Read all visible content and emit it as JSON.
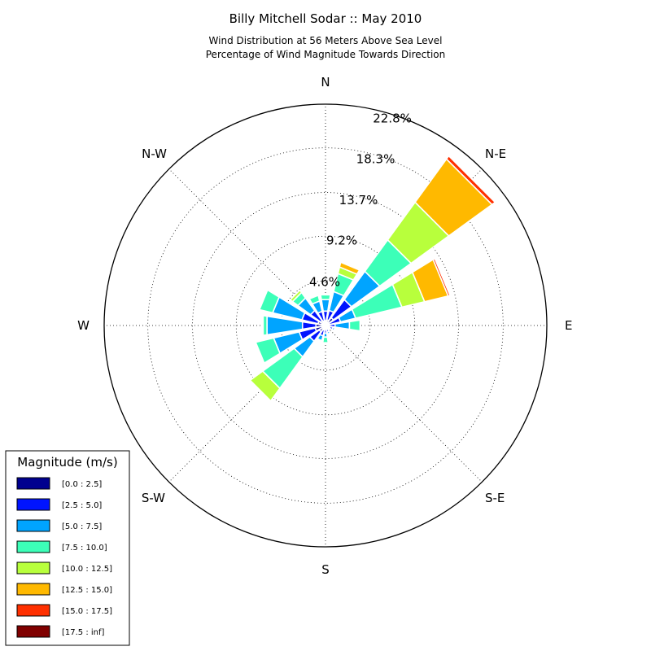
{
  "chart_data": {
    "type": "windrose",
    "title": "Billy Mitchell Sodar :: May 2010",
    "subtitle_lines": [
      "Wind Distribution at 56 Meters Above Sea Level",
      "Percentage of Wind Magnitude Towards Direction"
    ],
    "directions": [
      "N",
      "N-E",
      "E",
      "S-E",
      "S",
      "S-W",
      "W",
      "N-W"
    ],
    "ring_values": [
      4.6,
      9.2,
      13.7,
      18.3,
      22.8
    ],
    "ring_labels": [
      "4.6%",
      "9.2%",
      "13.7%",
      "18.3%",
      "22.8%"
    ],
    "rmax": 22.8,
    "grid": true,
    "legend": {
      "title": "Magnitude (m/s)",
      "position": "bottom-left",
      "bins": [
        "[0.0 : 2.5]",
        "[2.5 : 5.0]",
        "[5.0 : 7.5]",
        "[7.5 : 10.0]",
        "[10.0 : 12.5]",
        "[12.5 : 15.0]",
        "[15.0 : 17.5]",
        "[17.5 : inf]"
      ],
      "colors": [
        "#00008f",
        "#0014ff",
        "#00a4ff",
        "#3cffb8",
        "#b8ff3c",
        "#ffb900",
        "#ff3000",
        "#800000"
      ]
    },
    "bars": [
      {
        "angle": 0,
        "stacks": [
          0.5,
          1.0,
          1.2,
          0.5
        ]
      },
      {
        "angle": 22.5,
        "stacks": [
          0.6,
          1.0,
          2.0,
          1.9,
          0.7,
          0.5
        ]
      },
      {
        "angle": 45,
        "stacks": [
          1.0,
          2.3,
          3.6,
          4.0,
          4.8,
          5.5,
          0.4
        ]
      },
      {
        "angle": 67.5,
        "stacks": [
          0.4,
          1.2,
          1.6,
          4.9,
          2.4,
          2.5,
          0.2
        ]
      },
      {
        "angle": 90,
        "stacks": [
          0.4,
          0.6,
          1.5,
          1.1
        ]
      },
      {
        "angle": 112.5,
        "stacks": [
          0.5,
          0.3,
          0.2,
          0.1
        ]
      },
      {
        "angle": 135,
        "stacks": [
          0.2,
          0.2,
          0.1
        ]
      },
      {
        "angle": 157.5,
        "stacks": [
          0.3,
          0.4,
          0.2
        ]
      },
      {
        "angle": 180,
        "stacks": [
          0.2,
          0.6,
          0.4,
          0.6
        ]
      },
      {
        "angle": 202.5,
        "stacks": [
          0.5,
          0.6,
          0.5
        ]
      },
      {
        "angle": 225,
        "stacks": [
          0.8,
          1.2,
          2.0,
          4.0,
          1.6
        ]
      },
      {
        "angle": 247.5,
        "stacks": [
          1.1,
          1.7,
          2.7,
          1.9
        ]
      },
      {
        "angle": 270,
        "stacks": [
          1.0,
          1.4,
          3.7,
          0.4
        ]
      },
      {
        "angle": 292.5,
        "stacks": [
          0.8,
          1.7,
          3.1,
          1.4
        ]
      },
      {
        "angle": 315,
        "stacks": [
          0.6,
          1.3,
          1.6,
          0.7,
          0.3
        ]
      },
      {
        "angle": 337.5,
        "stacks": [
          0.5,
          1.0,
          1.1,
          0.6
        ]
      }
    ]
  }
}
